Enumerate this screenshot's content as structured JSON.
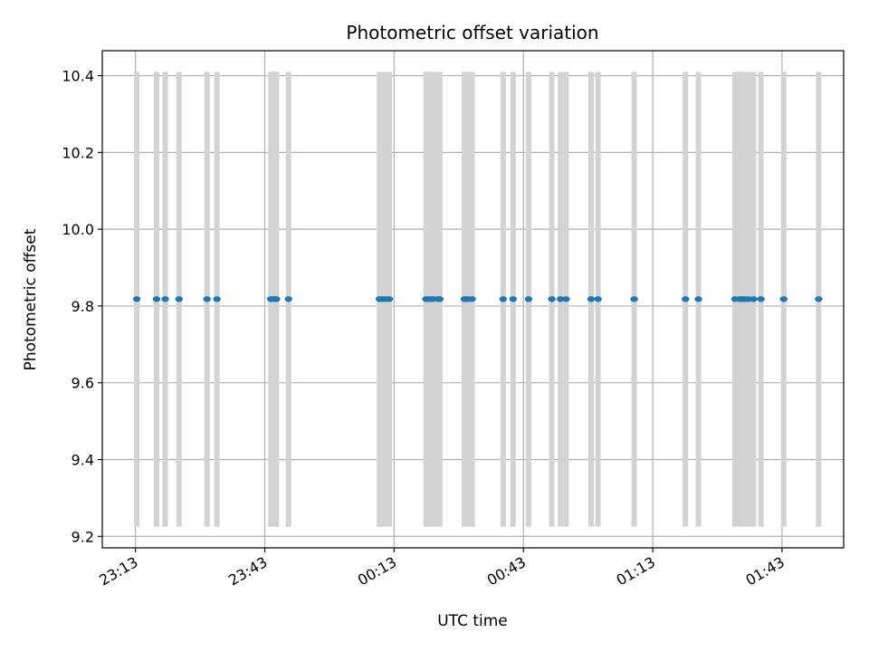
{
  "chart_data": {
    "type": "scatter",
    "title": "Photometric offset variation",
    "xlabel": "UTC time",
    "ylabel": "Photometric offset",
    "grid": true,
    "x_ticks": [
      "23:13",
      "23:43",
      "00:13",
      "00:43",
      "01:13",
      "01:43"
    ],
    "x_tick_minutes": [
      0,
      30,
      60,
      90,
      120,
      150
    ],
    "xlim_minutes": [
      -7.7,
      164.3
    ],
    "ylim": [
      9.17,
      10.465
    ],
    "y_ticks": [
      9.2,
      9.4,
      9.6,
      9.8,
      10.0,
      10.2,
      10.4
    ],
    "y_tick_labels": [
      "9.2",
      "9.4",
      "9.6",
      "9.8",
      "10.0",
      "10.2",
      "10.4"
    ],
    "value": 9.818,
    "error_low": 9.225,
    "error_high": 10.41,
    "point_color": "#1f77b4",
    "error_color": "#d3d3d3",
    "points_minutes": [
      0.3,
      4.9,
      6.9,
      10.1,
      16.6,
      18.9,
      31.4,
      31.8,
      32.3,
      32.7,
      35.5,
      56.6,
      57.4,
      58.1,
      58.9,
      67.4,
      67.9,
      68.5,
      69.0,
      70.1,
      70.6,
      76.3,
      76.8,
      77.3,
      78.1,
      85.3,
      87.6,
      91.2,
      96.6,
      98.6,
      99.9,
      105.7,
      107.3,
      115.7,
      127.6,
      130.6,
      139.1,
      140.2,
      140.7,
      141.3,
      142.2,
      143.4,
      145.1,
      150.4,
      158.5
    ]
  }
}
